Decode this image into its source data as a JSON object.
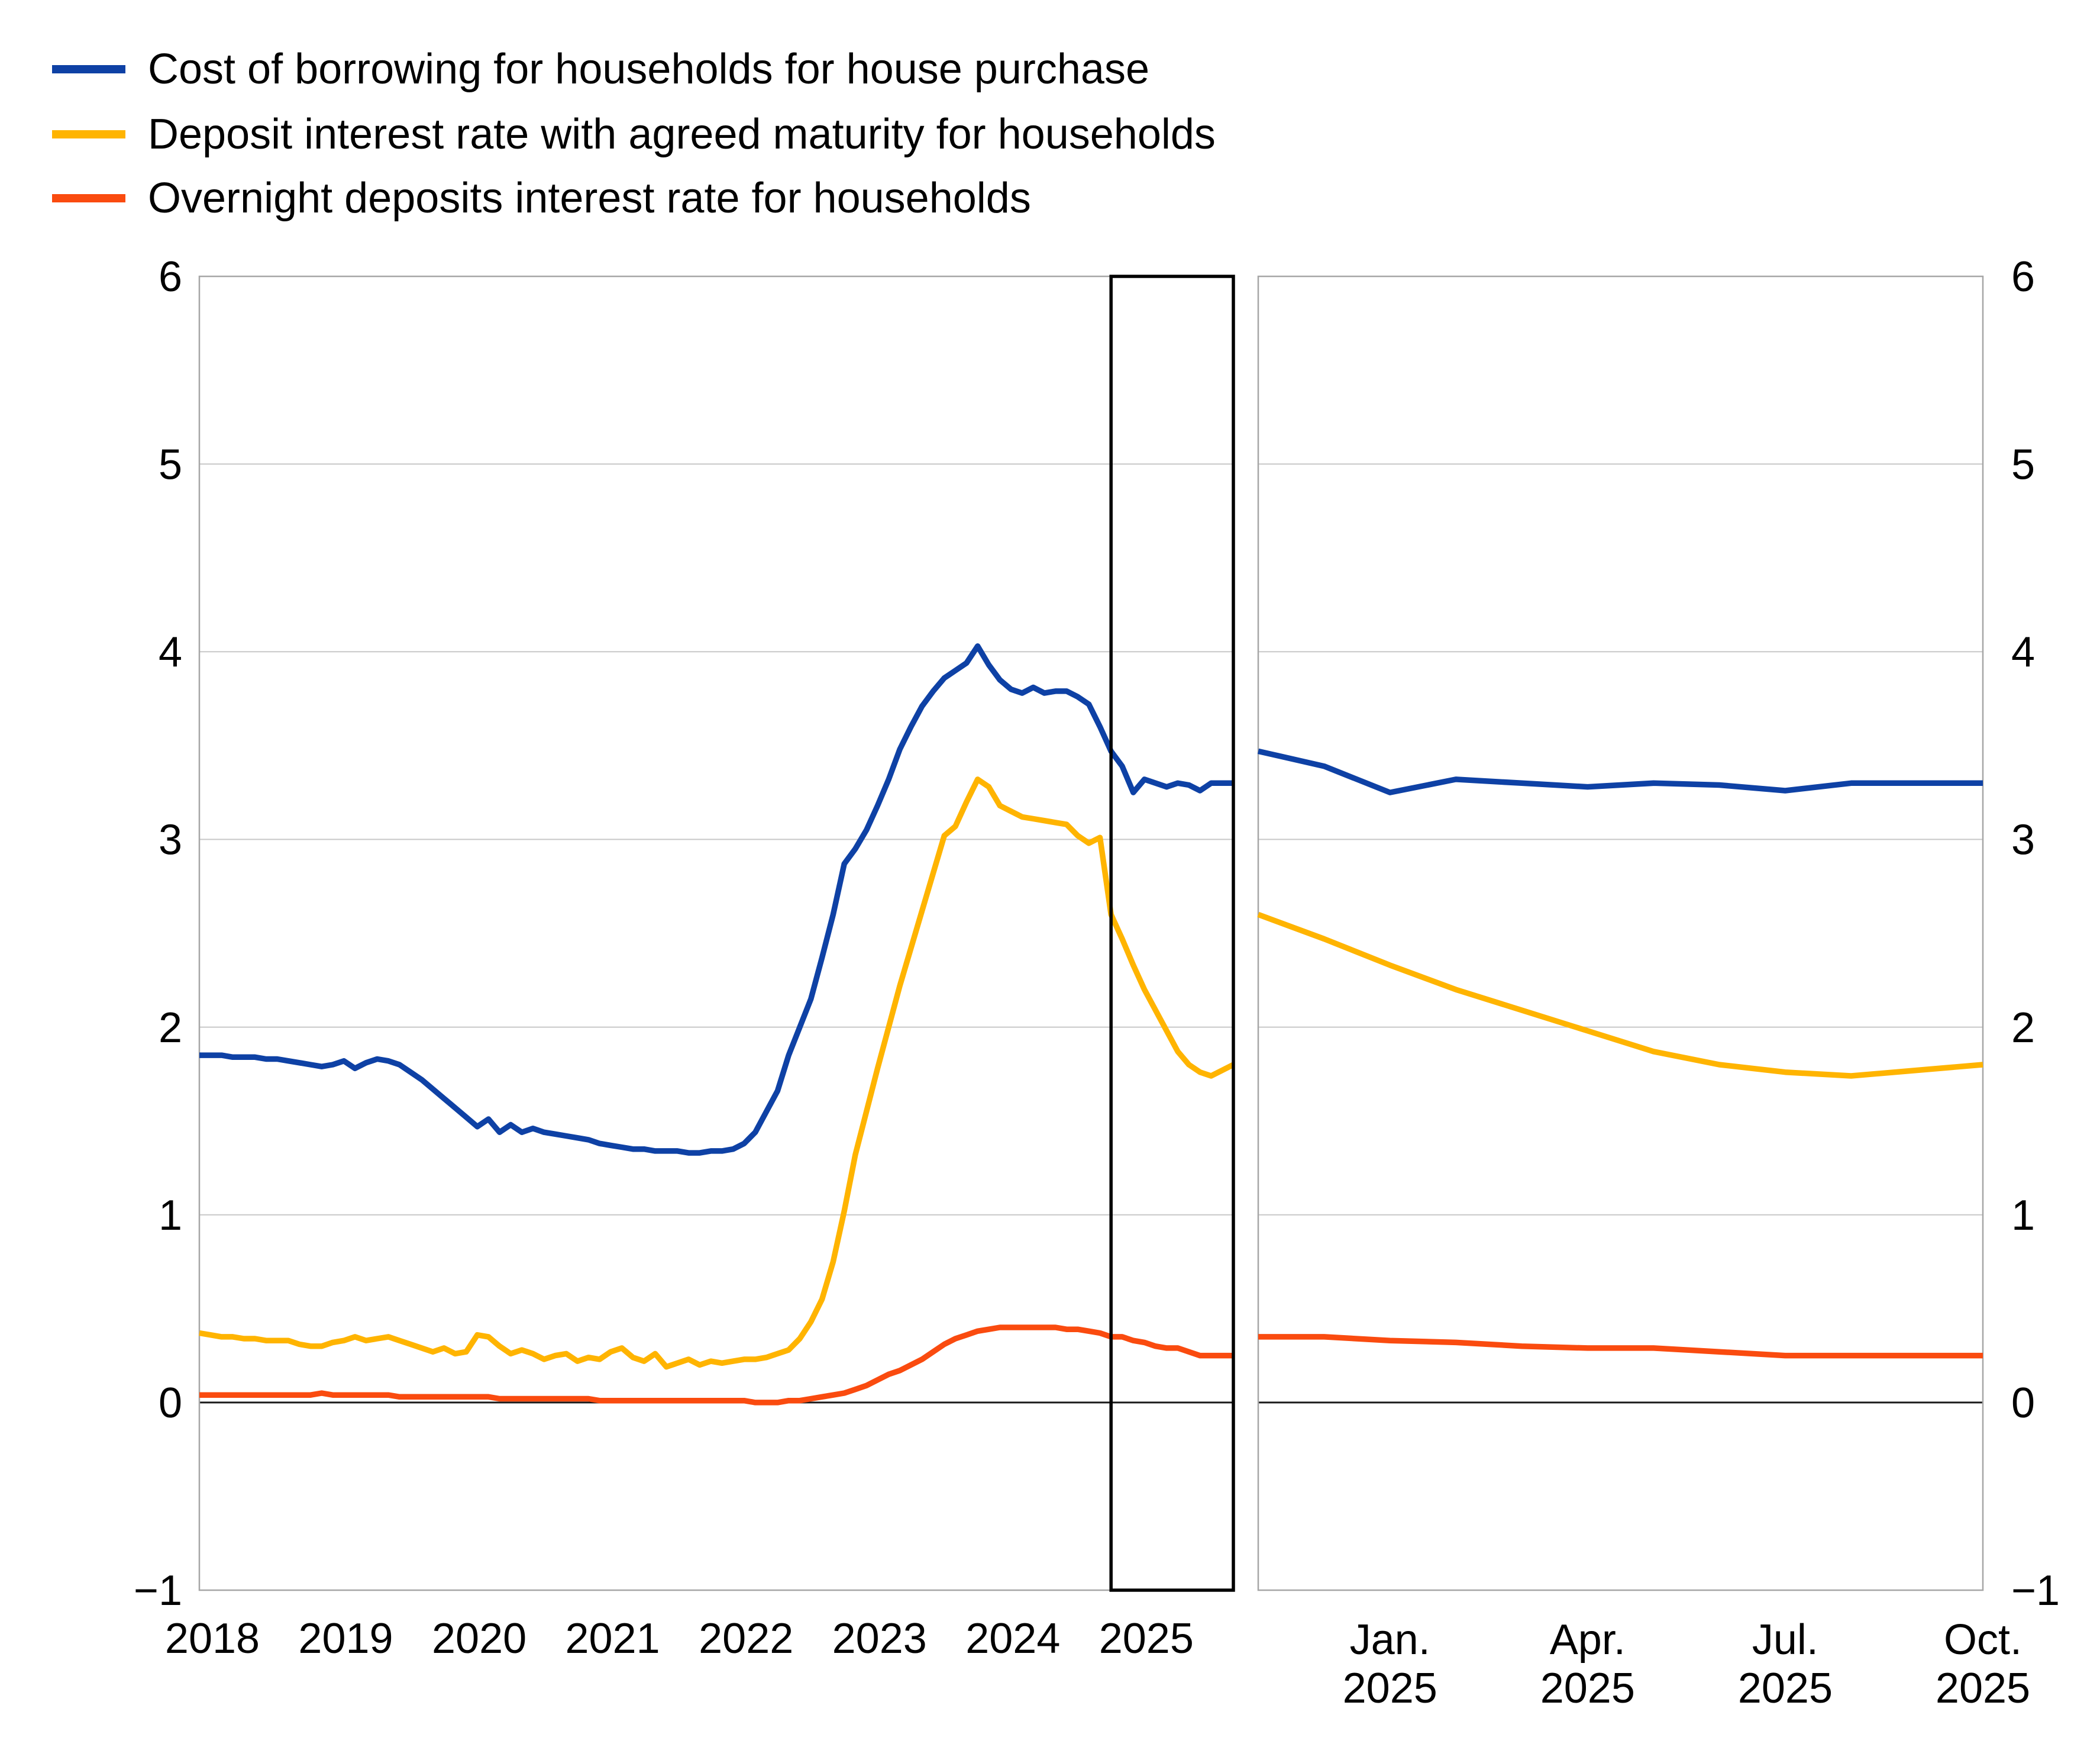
{
  "legend": {
    "items": [
      {
        "label": "Cost of borrowing for households for house purchase",
        "color": "#0E41A5"
      },
      {
        "label": "Deposit interest rate with agreed maturity for households",
        "color": "#FFB400"
      },
      {
        "label": "Overnight deposits interest rate for households",
        "color": "#FA4B0F"
      }
    ]
  },
  "chart_data": {
    "type": "line",
    "frequency": "monthly",
    "x_start": "2018-01",
    "x_end": "2025-10",
    "ylim": [
      -1,
      6
    ],
    "grid": "horizontal",
    "zero_line": true,
    "y_ticks": [
      {
        "label": "6",
        "value": 6
      },
      {
        "label": "5",
        "value": 5
      },
      {
        "label": "4",
        "value": 4
      },
      {
        "label": "3",
        "value": 3
      },
      {
        "label": "2",
        "value": 2
      },
      {
        "label": "1",
        "value": 1
      },
      {
        "label": "0",
        "value": 0
      },
      {
        "label": "−1",
        "value": -1
      }
    ],
    "left_panel": {
      "x_ticks": [
        {
          "label": "2018",
          "month_index": 0
        },
        {
          "label": "2019",
          "month_index": 12
        },
        {
          "label": "2020",
          "month_index": 24
        },
        {
          "label": "2021",
          "month_index": 36
        },
        {
          "label": "2022",
          "month_index": 48
        },
        {
          "label": "2023",
          "month_index": 60
        },
        {
          "label": "2024",
          "month_index": 72
        },
        {
          "label": "2025",
          "month_index": 84
        }
      ]
    },
    "right_panel": {
      "description": "Detail of the last 12 months (Nov. 2024 - Oct. 2025)",
      "x_ticks": [
        {
          "line1": "Jan.",
          "line2": "2025",
          "month_offset": 2
        },
        {
          "line1": "Apr.",
          "line2": "2025",
          "month_offset": 5
        },
        {
          "line1": "Jul.",
          "line2": "2025",
          "month_offset": 8
        },
        {
          "line1": "Oct.",
          "line2": "2025",
          "month_offset": 11
        }
      ]
    },
    "highlight_box_months": [
      "2024-11",
      "2025-10"
    ],
    "series": [
      {
        "name": "Cost of borrowing for households for house purchase",
        "color": "#0E41A5",
        "values": [
          1.85,
          1.85,
          1.85,
          1.84,
          1.84,
          1.84,
          1.83,
          1.83,
          1.82,
          1.81,
          1.8,
          1.79,
          1.8,
          1.82,
          1.78,
          1.81,
          1.83,
          1.82,
          1.8,
          1.76,
          1.72,
          1.67,
          1.62,
          1.57,
          1.52,
          1.47,
          1.51,
          1.44,
          1.48,
          1.44,
          1.46,
          1.44,
          1.43,
          1.42,
          1.41,
          1.4,
          1.38,
          1.37,
          1.36,
          1.35,
          1.35,
          1.34,
          1.34,
          1.34,
          1.33,
          1.33,
          1.34,
          1.34,
          1.35,
          1.38,
          1.44,
          1.55,
          1.66,
          1.85,
          2.0,
          2.15,
          2.37,
          2.6,
          2.87,
          2.95,
          3.05,
          3.18,
          3.32,
          3.48,
          3.6,
          3.71,
          3.79,
          3.86,
          3.9,
          3.94,
          4.03,
          3.93,
          3.85,
          3.8,
          3.78,
          3.81,
          3.78,
          3.79,
          3.79,
          3.76,
          3.72,
          3.6,
          3.47,
          3.39,
          3.25,
          3.32,
          3.3,
          3.28,
          3.3,
          3.29,
          3.26,
          3.3,
          3.3,
          3.3
        ]
      },
      {
        "name": "Deposit interest rate with agreed maturity for households",
        "color": "#FFB400",
        "values": [
          0.37,
          0.36,
          0.35,
          0.35,
          0.34,
          0.34,
          0.33,
          0.33,
          0.33,
          0.31,
          0.3,
          0.3,
          0.32,
          0.33,
          0.35,
          0.33,
          0.34,
          0.35,
          0.33,
          0.31,
          0.29,
          0.27,
          0.29,
          0.26,
          0.27,
          0.36,
          0.35,
          0.3,
          0.26,
          0.28,
          0.26,
          0.23,
          0.25,
          0.26,
          0.22,
          0.24,
          0.23,
          0.27,
          0.29,
          0.24,
          0.22,
          0.26,
          0.19,
          0.21,
          0.23,
          0.2,
          0.22,
          0.21,
          0.22,
          0.23,
          0.23,
          0.24,
          0.26,
          0.28,
          0.34,
          0.43,
          0.55,
          0.75,
          1.02,
          1.32,
          1.55,
          1.78,
          2.0,
          2.22,
          2.42,
          2.62,
          2.82,
          3.02,
          3.07,
          3.2,
          3.32,
          3.28,
          3.18,
          3.15,
          3.12,
          3.11,
          3.1,
          3.09,
          3.08,
          3.02,
          2.98,
          3.01,
          2.6,
          2.47,
          2.33,
          2.2,
          2.09,
          1.98,
          1.87,
          1.8,
          1.76,
          1.74,
          1.77,
          1.8
        ]
      },
      {
        "name": "Overnight deposits interest rate for households",
        "color": "#FA4B0F",
        "values": [
          0.04,
          0.04,
          0.04,
          0.04,
          0.04,
          0.04,
          0.04,
          0.04,
          0.04,
          0.04,
          0.04,
          0.05,
          0.04,
          0.04,
          0.04,
          0.04,
          0.04,
          0.04,
          0.03,
          0.03,
          0.03,
          0.03,
          0.03,
          0.03,
          0.03,
          0.03,
          0.03,
          0.02,
          0.02,
          0.02,
          0.02,
          0.02,
          0.02,
          0.02,
          0.02,
          0.02,
          0.01,
          0.01,
          0.01,
          0.01,
          0.01,
          0.01,
          0.01,
          0.01,
          0.01,
          0.01,
          0.01,
          0.01,
          0.01,
          0.01,
          0.0,
          0.0,
          0.0,
          0.01,
          0.01,
          0.02,
          0.03,
          0.04,
          0.05,
          0.07,
          0.09,
          0.12,
          0.15,
          0.17,
          0.2,
          0.23,
          0.27,
          0.31,
          0.34,
          0.36,
          0.38,
          0.39,
          0.4,
          0.4,
          0.4,
          0.4,
          0.4,
          0.4,
          0.39,
          0.39,
          0.38,
          0.37,
          0.35,
          0.35,
          0.33,
          0.32,
          0.3,
          0.29,
          0.29,
          0.27,
          0.25,
          0.25,
          0.25,
          0.25
        ]
      }
    ],
    "style": {
      "grid_color": "#c8c8c8",
      "frame_color": "#a6a6a6",
      "zero_line_color": "#1a1a1a",
      "highlight_box_color": "#000000",
      "line_width": 9.5
    }
  }
}
